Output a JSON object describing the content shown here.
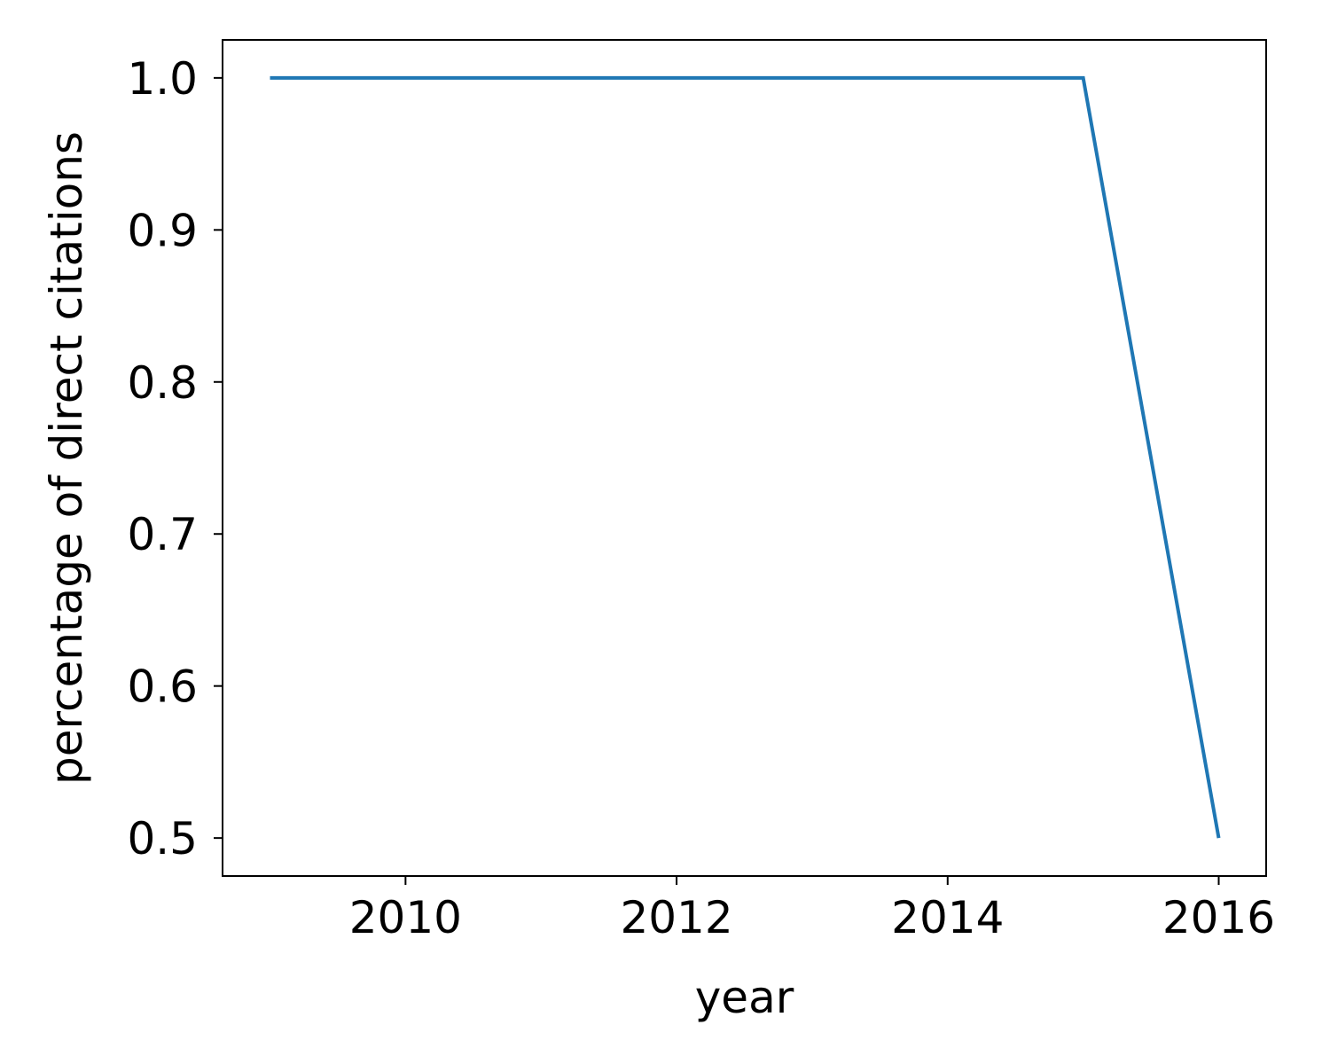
{
  "chart_data": {
    "type": "line",
    "title": "",
    "xlabel": "year",
    "ylabel": "percentage of direct citations",
    "xlim": [
      2008.65,
      2016.35
    ],
    "ylim": [
      0.475,
      1.025
    ],
    "xticks": [
      2010,
      2012,
      2014,
      2016
    ],
    "xtick_labels": [
      "2010",
      "2012",
      "2014",
      "2016"
    ],
    "yticks": [
      0.5,
      0.6,
      0.7,
      0.8,
      0.9,
      1.0
    ],
    "ytick_labels": [
      "0.5",
      "0.6",
      "0.7",
      "0.8",
      "0.9",
      "1.0"
    ],
    "grid": false,
    "series": [
      {
        "name": "direct citations",
        "color": "#1f77b4",
        "x": [
          2009,
          2010,
          2011,
          2012,
          2013,
          2014,
          2015,
          2016
        ],
        "y": [
          1.0,
          1.0,
          1.0,
          1.0,
          1.0,
          1.0,
          1.0,
          0.5
        ]
      }
    ]
  }
}
